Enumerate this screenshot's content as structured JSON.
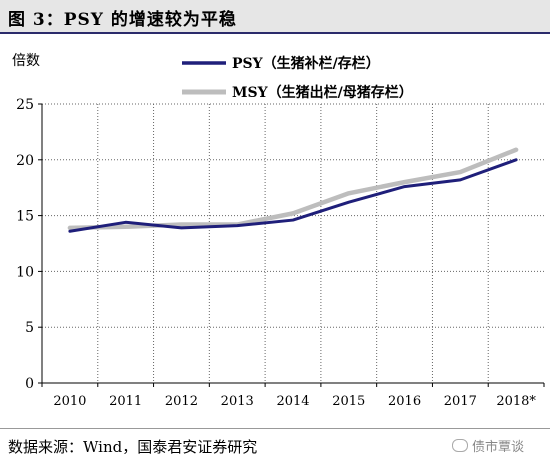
{
  "title": "图 3：PSY 的增速较为平稳",
  "source": "数据来源：Wind，国泰君安证券研究",
  "watermark": "债市覃谈",
  "chart_data": {
    "type": "line",
    "ylabel": "倍数",
    "xlabel": "",
    "ylim": [
      0,
      25
    ],
    "yticks": [
      0,
      5,
      10,
      15,
      20,
      25
    ],
    "categories": [
      "2010",
      "2011",
      "2012",
      "2013",
      "2014",
      "2015",
      "2016",
      "2017",
      "2018*"
    ],
    "grid": true,
    "legend_position": "top-right",
    "series": [
      {
        "name": "PSY（生猪补栏/存栏）",
        "color": "#1f1f7a",
        "values": [
          13.6,
          14.4,
          13.9,
          14.1,
          14.6,
          16.2,
          17.6,
          18.2,
          20.0
        ]
      },
      {
        "name": "MSY（生猪出栏/母猪存栏）",
        "color": "#bdbdbd",
        "values": [
          13.9,
          14.0,
          14.2,
          14.2,
          15.2,
          17.0,
          18.0,
          18.9,
          20.9
        ]
      }
    ]
  }
}
